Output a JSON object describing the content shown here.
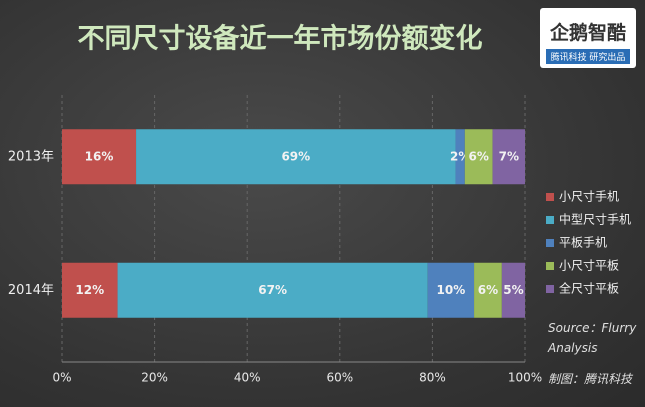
{
  "chart_data": {
    "type": "bar",
    "orientation": "horizontal",
    "stacked": true,
    "title": "不同尺寸设备近一年市场份额变化",
    "categories": [
      "2013年",
      "2014年"
    ],
    "series": [
      {
        "name": "小尺寸手机",
        "color": "#c0504d",
        "values": [
          16,
          12
        ],
        "value_labels": [
          "16%",
          "12%"
        ]
      },
      {
        "name": "中型尺寸手机",
        "color": "#4bacc6",
        "values": [
          69,
          67
        ],
        "value_labels": [
          "69%",
          "67%"
        ]
      },
      {
        "name": "平板手机",
        "color": "#4f81bd",
        "values": [
          2,
          10
        ],
        "value_labels": [
          "2%",
          "10%"
        ]
      },
      {
        "name": "小尺寸平板",
        "color": "#9bbb59",
        "values": [
          6,
          6
        ],
        "value_labels": [
          "6%",
          "6%"
        ]
      },
      {
        "name": "全尺寸平板",
        "color": "#8064a2",
        "values": [
          7,
          5
        ],
        "value_labels": [
          "7%",
          "5%"
        ]
      }
    ],
    "xlim": [
      0,
      100
    ],
    "xticks": [
      {
        "value": 0,
        "label": "0%"
      },
      {
        "value": 20,
        "label": "20%"
      },
      {
        "value": 40,
        "label": "40%"
      },
      {
        "value": 60,
        "label": "60%"
      },
      {
        "value": 80,
        "label": "80%"
      },
      {
        "value": 100,
        "label": "100%"
      }
    ],
    "grid": true,
    "source": "Source：Flurry Analysis",
    "credit": "制图：腾讯科技",
    "logo": {
      "title": "企鹅智酷",
      "subtitle": "腾讯科技 研究出品"
    }
  }
}
